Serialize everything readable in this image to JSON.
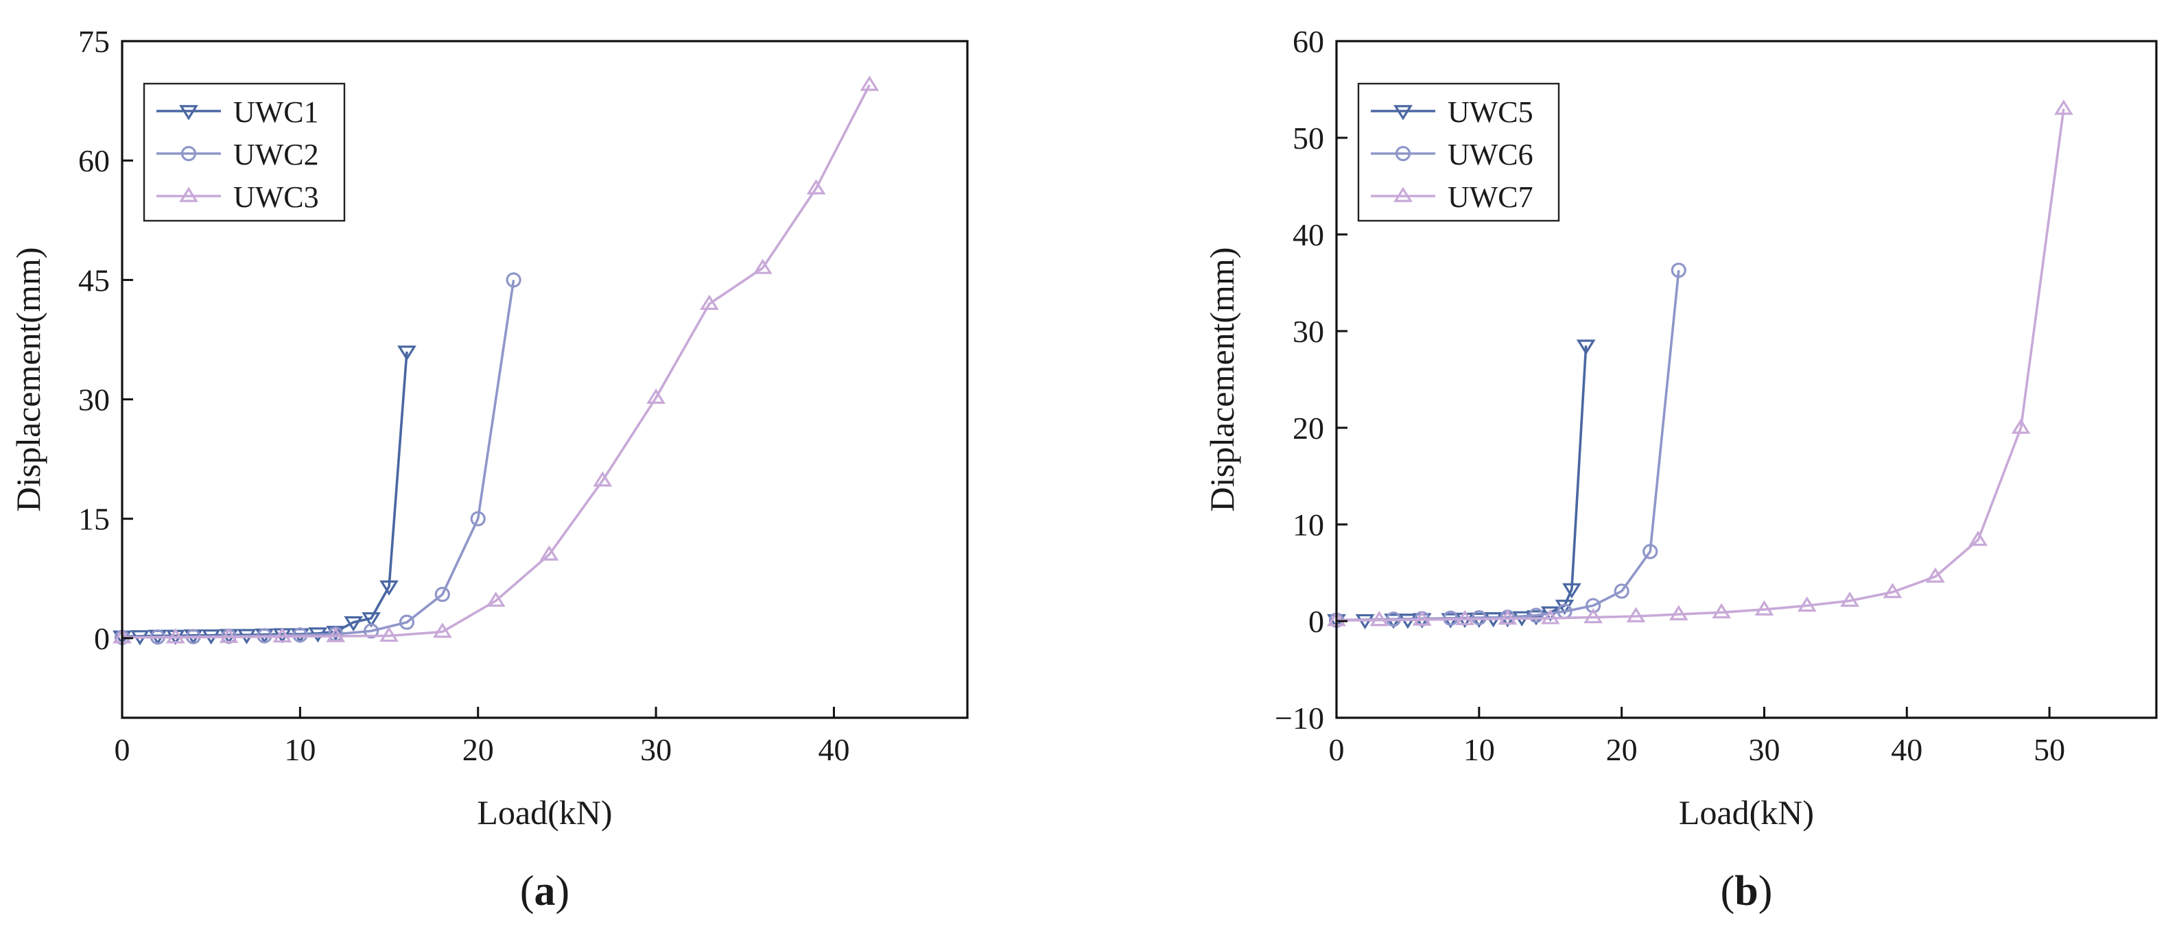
{
  "figure": {
    "panel_labels": [
      "(a)",
      "(b)"
    ]
  },
  "chart_data": [
    {
      "type": "line",
      "panel_label": "(a)",
      "xlabel": "Load(kN)",
      "ylabel": "Displacement(mm)",
      "xlim": [
        0,
        47.5
      ],
      "ylim": [
        -10,
        75
      ],
      "xticks": [
        0,
        10,
        20,
        30,
        40
      ],
      "yticks": [
        0,
        15,
        30,
        45,
        60,
        75
      ],
      "grid": false,
      "legend": "top-left",
      "series": [
        {
          "name": "UWC1",
          "color": "#4a67a3",
          "marker": "triangle-down",
          "x": [
            0,
            1,
            2,
            3,
            4,
            5,
            6,
            7,
            8,
            9,
            10,
            11,
            12,
            13,
            14,
            15,
            16
          ],
          "y": [
            0.2,
            0.25,
            0.3,
            0.3,
            0.35,
            0.35,
            0.4,
            0.4,
            0.45,
            0.5,
            0.5,
            0.6,
            0.8,
            2.0,
            2.5,
            6.5,
            36.0
          ]
        },
        {
          "name": "UWC2",
          "color": "#8f96c9",
          "marker": "circle",
          "x": [
            0,
            2,
            4,
            6,
            8,
            10,
            12,
            14,
            16,
            18,
            20,
            22
          ],
          "y": [
            0.1,
            0.15,
            0.2,
            0.25,
            0.3,
            0.4,
            0.5,
            0.9,
            2.0,
            5.5,
            15.0,
            45.0
          ]
        },
        {
          "name": "UWC3",
          "color": "#c8a9d8",
          "marker": "triangle-up",
          "x": [
            0,
            3,
            6,
            9,
            12,
            15,
            18,
            21,
            24,
            27,
            30,
            33,
            36,
            39,
            42
          ],
          "y": [
            0.1,
            0.1,
            0.15,
            0.2,
            0.25,
            0.3,
            0.8,
            4.7,
            10.5,
            19.8,
            30.2,
            42.0,
            46.5,
            56.5,
            69.5
          ]
        }
      ]
    },
    {
      "type": "line",
      "panel_label": "(b)",
      "xlabel": "Load(kN)",
      "ylabel": "Displacement(mm)",
      "xlim": [
        0,
        57.5
      ],
      "ylim": [
        -10,
        60
      ],
      "xticks": [
        0,
        10,
        20,
        30,
        40,
        50
      ],
      "yticks": [
        -10,
        0,
        10,
        20,
        30,
        40,
        50,
        60
      ],
      "grid": false,
      "legend": "top-left",
      "series": [
        {
          "name": "UWC5",
          "color": "#4a67a3",
          "marker": "triangle-down",
          "x": [
            0,
            2,
            4,
            5,
            6,
            8,
            9,
            10,
            11,
            12,
            13,
            14,
            15,
            16,
            16.5,
            17.5
          ],
          "y": [
            0.1,
            0.1,
            0.15,
            0.15,
            0.2,
            0.2,
            0.25,
            0.25,
            0.3,
            0.3,
            0.4,
            0.5,
            0.9,
            1.6,
            3.3,
            28.5
          ]
        },
        {
          "name": "UWC6",
          "color": "#8f96c9",
          "marker": "circle",
          "x": [
            0,
            4,
            6,
            8,
            10,
            12,
            14,
            16,
            18,
            20,
            22,
            24
          ],
          "y": [
            0.1,
            0.2,
            0.25,
            0.3,
            0.35,
            0.4,
            0.6,
            1.0,
            1.6,
            3.1,
            7.2,
            36.3
          ]
        },
        {
          "name": "UWC7",
          "color": "#c8a9d8",
          "marker": "triangle-up",
          "x": [
            0,
            3,
            6,
            9,
            12,
            15,
            18,
            21,
            24,
            27,
            30,
            33,
            36,
            39,
            42,
            45,
            48,
            51
          ],
          "y": [
            0.1,
            0.1,
            0.15,
            0.2,
            0.25,
            0.3,
            0.4,
            0.5,
            0.7,
            0.9,
            1.2,
            1.6,
            2.1,
            3.0,
            4.6,
            8.4,
            20.0,
            53.0
          ]
        }
      ]
    }
  ]
}
